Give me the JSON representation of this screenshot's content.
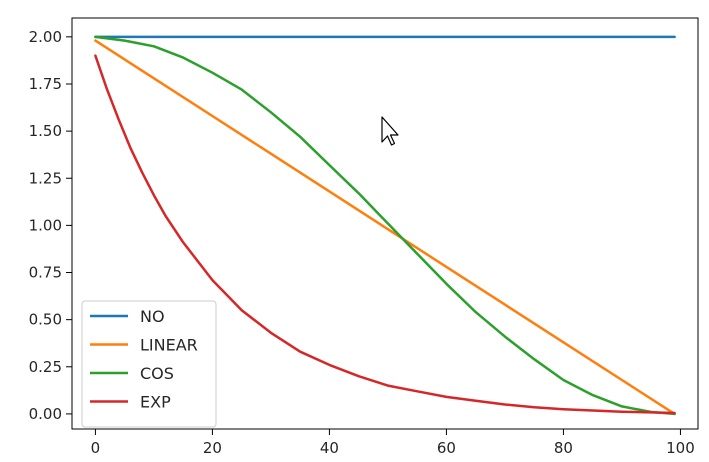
{
  "chart_data": {
    "type": "line",
    "title": "",
    "xlabel": "",
    "ylabel": "",
    "xlim": [
      -4,
      103
    ],
    "ylim": [
      -0.08,
      2.1
    ],
    "xticks": [
      "0",
      "20",
      "40",
      "60",
      "80",
      "100"
    ],
    "yticks": [
      "0.00",
      "0.25",
      "0.50",
      "0.75",
      "1.00",
      "1.25",
      "1.50",
      "1.75",
      "2.00"
    ],
    "grid": false,
    "legend_position": "lower-left",
    "series": [
      {
        "name": "NO",
        "color": "#1f77b4",
        "x": [
          0,
          10,
          20,
          30,
          40,
          50,
          60,
          70,
          80,
          90,
          99
        ],
        "y": [
          2.0,
          2.0,
          2.0,
          2.0,
          2.0,
          2.0,
          2.0,
          2.0,
          2.0,
          2.0,
          2.0
        ]
      },
      {
        "name": "LINEAR",
        "color": "#ff7f0e",
        "x": [
          0,
          10,
          20,
          30,
          40,
          50,
          60,
          70,
          80,
          90,
          99
        ],
        "y": [
          1.98,
          1.78,
          1.58,
          1.38,
          1.18,
          0.98,
          0.78,
          0.58,
          0.38,
          0.18,
          0.0
        ]
      },
      {
        "name": "COS",
        "color": "#2ca02c",
        "x": [
          0,
          5,
          10,
          15,
          20,
          25,
          30,
          35,
          40,
          45,
          50,
          55,
          60,
          65,
          70,
          75,
          80,
          85,
          90,
          95,
          99
        ],
        "y": [
          2.0,
          1.98,
          1.95,
          1.89,
          1.81,
          1.72,
          1.6,
          1.47,
          1.32,
          1.17,
          1.01,
          0.85,
          0.69,
          0.54,
          0.41,
          0.29,
          0.18,
          0.1,
          0.04,
          0.01,
          0.0
        ]
      },
      {
        "name": "EXP",
        "color": "#d62728",
        "x": [
          0,
          2,
          4,
          6,
          8,
          10,
          12,
          15,
          20,
          25,
          30,
          35,
          40,
          45,
          50,
          55,
          60,
          65,
          70,
          75,
          80,
          85,
          90,
          95,
          99
        ],
        "y": [
          1.9,
          1.72,
          1.56,
          1.41,
          1.28,
          1.16,
          1.05,
          0.91,
          0.71,
          0.55,
          0.43,
          0.33,
          0.26,
          0.2,
          0.15,
          0.12,
          0.09,
          0.07,
          0.05,
          0.035,
          0.025,
          0.018,
          0.012,
          0.008,
          0.005
        ]
      }
    ]
  },
  "cursor_icon": "mouse-pointer-arrow-icon"
}
